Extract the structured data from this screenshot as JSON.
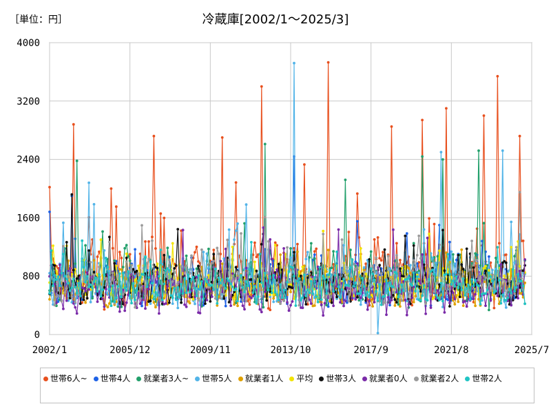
{
  "header": {
    "unit": "［単位：円］",
    "title": "冷蔵庫[2002/1～2025/3]"
  },
  "chart_data": {
    "type": "line",
    "title": "冷蔵庫[2002/1～2025/3]",
    "unit": "［単位：円］",
    "ylim": [
      0,
      4000
    ],
    "yticks": [
      "0",
      "800",
      "1600",
      "2400",
      "3200",
      "4000"
    ],
    "xlim": [
      "2002/1",
      "2025/7"
    ],
    "xticks": [
      "2002/1",
      "2005/12",
      "2009/11",
      "2013/10",
      "2017/9",
      "2021/8",
      "2025/7"
    ],
    "grid": true,
    "legend_position": "bottom",
    "series": [
      {
        "name": "世帯6人~",
        "color": "#e8501e",
        "base": 820,
        "amp": 420,
        "seed": 1,
        "peaks": [
          [
            2003.2,
            2880
          ],
          [
            2005.0,
            2000
          ],
          [
            2007.1,
            2720
          ],
          [
            2010.4,
            2700
          ],
          [
            2012.3,
            3400
          ],
          [
            2014.4,
            2330
          ],
          [
            2015.6,
            3730
          ],
          [
            2018.7,
            2850
          ],
          [
            2020.2,
            2940
          ],
          [
            2021.3,
            3100
          ],
          [
            2023.2,
            3000
          ],
          [
            2023.8,
            3540
          ],
          [
            2024.9,
            2720
          ]
        ]
      },
      {
        "name": "世帯4人",
        "color": "#1e62e6",
        "base": 720,
        "amp": 300,
        "seed": 2,
        "peaks": [
          [
            2003.1,
            1900
          ],
          [
            2013.9,
            2440
          ]
        ]
      },
      {
        "name": "就業者3人~",
        "color": "#22a06b",
        "base": 760,
        "amp": 380,
        "seed": 3,
        "peaks": [
          [
            2003.3,
            2380
          ],
          [
            2012.5,
            2610
          ],
          [
            2016.4,
            2120
          ],
          [
            2020.2,
            2440
          ],
          [
            2021.2,
            2400
          ],
          [
            2022.9,
            2520
          ]
        ]
      },
      {
        "name": "世帯5人",
        "color": "#52b4e8",
        "base": 740,
        "amp": 360,
        "seed": 4,
        "peaks": [
          [
            2003.9,
            2080
          ],
          [
            2013.9,
            3720
          ],
          [
            2021.1,
            2500
          ],
          [
            2024.1,
            2520
          ],
          [
            2018.0,
            20
          ]
        ]
      },
      {
        "name": "就業者1人",
        "color": "#e0a100",
        "base": 640,
        "amp": 260,
        "seed": 5,
        "peaks": []
      },
      {
        "name": "平均",
        "color": "#f2e400",
        "base": 700,
        "amp": 220,
        "seed": 6,
        "peaks": []
      },
      {
        "name": "世帯3人",
        "color": "#111111",
        "base": 680,
        "amp": 260,
        "seed": 7,
        "peaks": [
          [
            2003.1,
            1920
          ]
        ]
      },
      {
        "name": "就業者0人",
        "color": "#7a2aa8",
        "base": 600,
        "amp": 300,
        "seed": 8,
        "peaks": []
      },
      {
        "name": "就業者2人",
        "color": "#9a9a9a",
        "base": 720,
        "amp": 300,
        "seed": 9,
        "peaks": [
          [
            2024.9,
            1950
          ]
        ]
      },
      {
        "name": "世帯2人",
        "color": "#20c4c4",
        "base": 660,
        "amp": 240,
        "seed": 10,
        "peaks": []
      }
    ]
  }
}
